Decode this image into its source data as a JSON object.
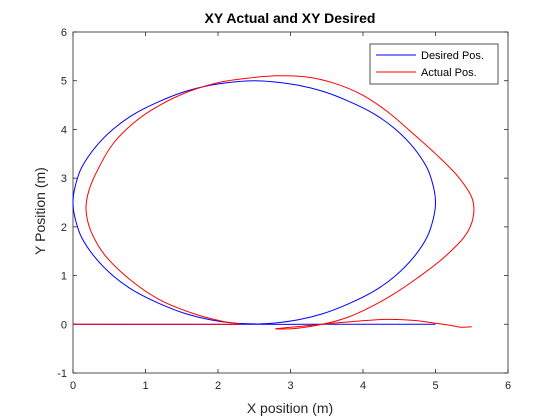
{
  "chart_data": {
    "type": "line",
    "title": "XY Actual and XY Desired",
    "xlabel": "X position (m)",
    "ylabel": "Y Position (m)",
    "xlim": [
      0,
      6
    ],
    "ylim": [
      -1,
      6
    ],
    "xticks": [
      0,
      1,
      2,
      3,
      4,
      5,
      6
    ],
    "yticks": [
      -1,
      0,
      1,
      2,
      3,
      4,
      5,
      6
    ],
    "grid": false,
    "legend_position": "top-right",
    "series": [
      {
        "name": "Desired Pos.",
        "color": "#0000ff",
        "x": [
          0,
          2.5,
          2.25,
          1.9,
          1.55,
          1.2,
          0.85,
          0.55,
          0.3,
          0.12,
          0.03,
          0,
          0.03,
          0.12,
          0.3,
          0.55,
          0.85,
          1.2,
          1.55,
          1.9,
          2.25,
          2.5,
          2.75,
          3.1,
          3.45,
          3.8,
          4.15,
          4.45,
          4.7,
          4.88,
          4.97,
          5.0,
          4.97,
          4.88,
          4.7,
          4.45,
          4.15,
          3.8,
          3.45,
          3.1,
          2.75,
          2.5,
          3.2,
          4.0,
          5.0
        ],
        "y": [
          0,
          0,
          0.02,
          0.09,
          0.22,
          0.42,
          0.68,
          1.0,
          1.38,
          1.78,
          2.17,
          2.5,
          2.83,
          3.22,
          3.62,
          4.0,
          4.32,
          4.58,
          4.78,
          4.91,
          4.98,
          5.0,
          4.98,
          4.91,
          4.78,
          4.58,
          4.32,
          4.0,
          3.62,
          3.22,
          2.83,
          2.5,
          2.17,
          1.78,
          1.38,
          1.0,
          0.68,
          0.42,
          0.22,
          0.09,
          0.02,
          0,
          0,
          0,
          0
        ]
      },
      {
        "name": "Actual Pos.",
        "color": "#ff0000",
        "x": [
          0,
          1.0,
          2.0,
          2.3,
          2.1,
          1.7,
          1.2,
          0.8,
          0.45,
          0.25,
          0.18,
          0.22,
          0.35,
          0.55,
          0.85,
          1.2,
          1.6,
          2.0,
          2.4,
          2.8,
          3.2,
          3.6,
          4.0,
          4.35,
          4.7,
          5.0,
          5.3,
          5.5,
          5.52,
          5.4,
          5.1,
          4.75,
          4.4,
          4.1,
          3.8,
          3.5,
          3.1,
          2.8,
          3.3,
          3.8,
          4.3,
          4.7,
          5.0,
          5.2,
          5.35,
          5.5
        ],
        "y": [
          0,
          0,
          0,
          0,
          0.05,
          0.2,
          0.5,
          0.9,
          1.4,
          1.9,
          2.35,
          2.75,
          3.2,
          3.7,
          4.15,
          4.5,
          4.78,
          4.96,
          5.05,
          5.1,
          5.08,
          4.95,
          4.7,
          4.35,
          3.9,
          3.5,
          3.05,
          2.6,
          2.2,
          1.8,
          1.35,
          0.95,
          0.6,
          0.35,
          0.15,
          0.02,
          -0.08,
          -0.09,
          -0.02,
          0.05,
          0.1,
          0.08,
          0.02,
          -0.02,
          -0.06,
          -0.05
        ]
      }
    ]
  }
}
